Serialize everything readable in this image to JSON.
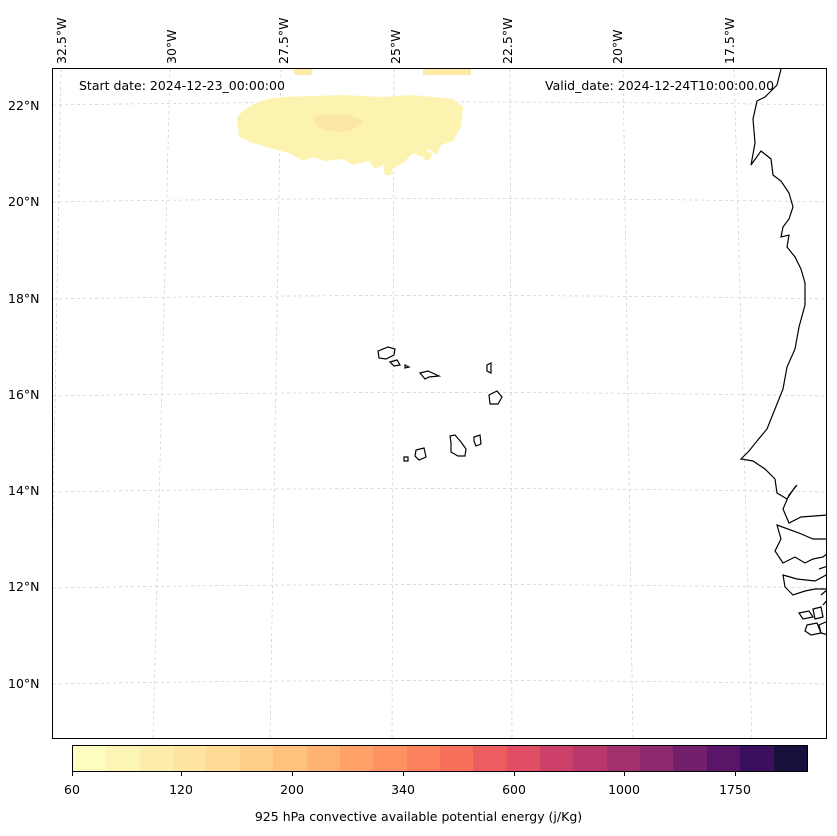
{
  "map": {
    "start_date": "Start date: 2024-12-23_00:00:00",
    "valid_date": "Valid_date: 2024-12-24T10:00:00.00",
    "lon_labels": [
      "32.5°W",
      "30°W",
      "27.5°W",
      "25°W",
      "22.5°W",
      "20°W",
      "17.5°W"
    ],
    "lat_labels": [
      "22°N",
      "20°N",
      "18°N",
      "16°N",
      "14°N",
      "12°N",
      "10°N"
    ],
    "gridlines": "dashed-light-gray",
    "field_color_main": "#fdf3b0",
    "field_color_peak": "#fde4a6",
    "coastline_color": "#000000"
  },
  "colorbar": {
    "label": "925 hPa convective available potential energy (j/Kg)",
    "tick_labels": [
      "60",
      "120",
      "200",
      "340",
      "600",
      "1000",
      "1750"
    ],
    "colors": [
      "#fcfdbf",
      "#fcf5b6",
      "#fdedab",
      "#fee4a0",
      "#feda94",
      "#fece88",
      "#fec17e",
      "#feb273",
      "#fea26a",
      "#fe9262",
      "#fb815d",
      "#f6705c",
      "#ec5d5f",
      "#df4e64",
      "#cd4069",
      "#b8386c",
      "#a2306d",
      "#8c2a6d",
      "#72206c",
      "#5a1569",
      "#3c0f5e",
      "#170f3c"
    ]
  }
}
